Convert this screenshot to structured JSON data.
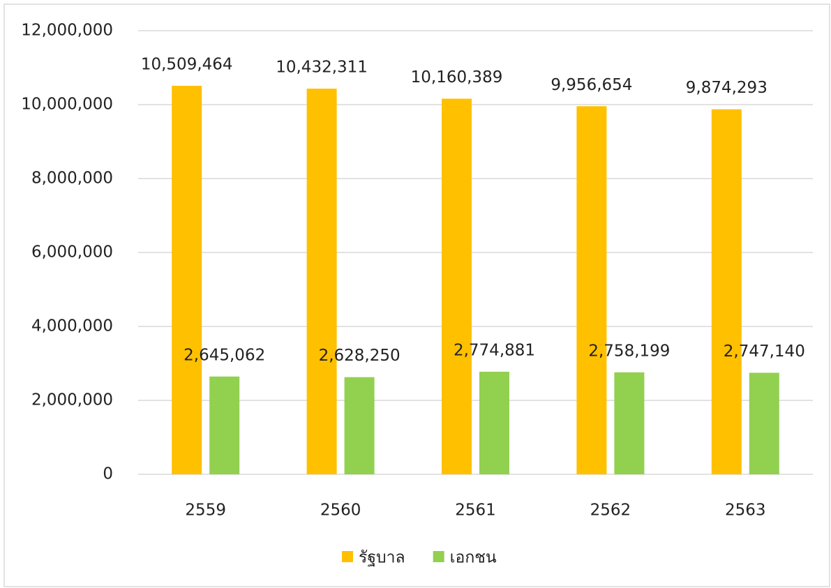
{
  "chart_data": {
    "type": "bar",
    "categories": [
      "2559",
      "2560",
      "2561",
      "2562",
      "2563"
    ],
    "series": [
      {
        "name": "รัฐบาล",
        "color": "#ffc000",
        "values": [
          10509464,
          10432311,
          10160389,
          9956654,
          9874293
        ],
        "value_labels": [
          "10,509,464",
          "10,432,311",
          "10,160,389",
          "9,956,654",
          "9,874,293"
        ]
      },
      {
        "name": "เอกชน",
        "color": "#92d050",
        "values": [
          2645062,
          2628250,
          2774881,
          2758199,
          2747140
        ],
        "value_labels": [
          "2,645,062",
          "2,628,250",
          "2,774,881",
          "2,758,199",
          "2,747,140"
        ]
      }
    ],
    "ylim": [
      0,
      12000000
    ],
    "yticks": [
      0,
      {
        "value": 2000000,
        "label": "2,000,000"
      },
      {
        "value": 4000000,
        "label": "4,000,000"
      },
      {
        "value": 6000000,
        "label": "6,000,000"
      },
      {
        "value": 8000000,
        "label": "8,000,000"
      },
      {
        "value": 10000000,
        "label": "10,000,000"
      },
      {
        "value": 12000000,
        "label": "12,000,000"
      }
    ],
    "grid": true,
    "legend": "bottom"
  }
}
